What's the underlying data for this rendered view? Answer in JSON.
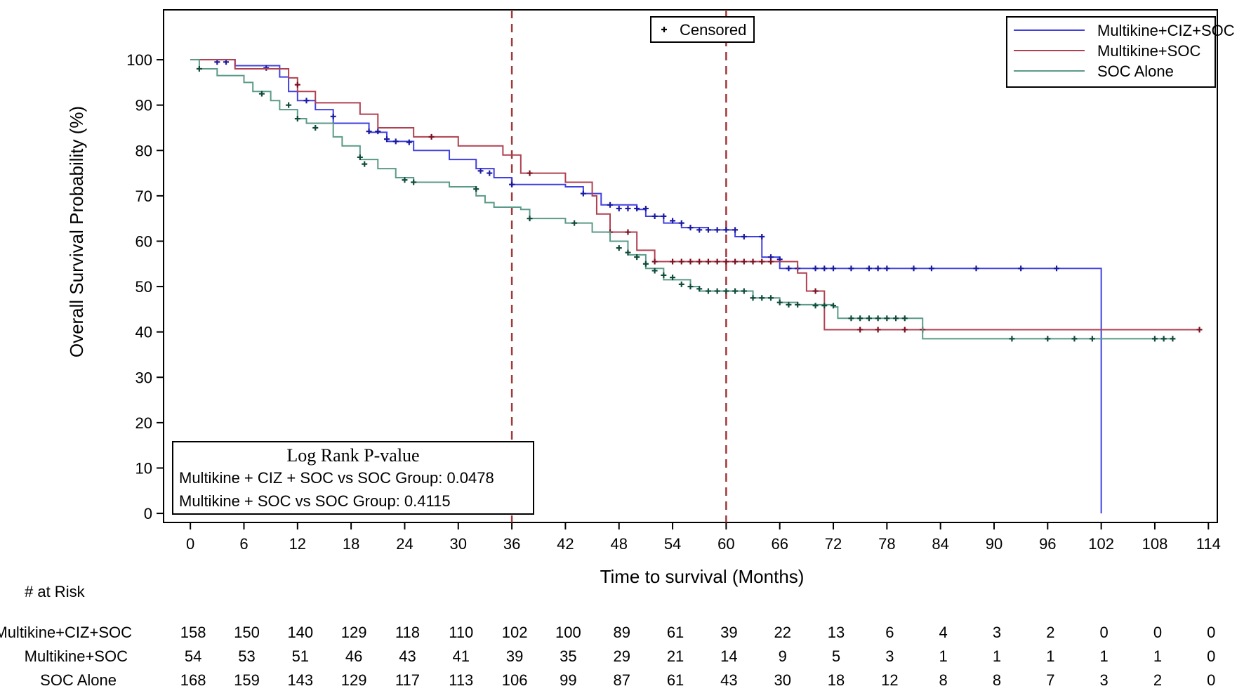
{
  "chart_data": {
    "type": "line",
    "subtype": "kaplan-meier",
    "title": "",
    "xlabel": "Time to survival (Months)",
    "ylabel": "Overall Survival Probability (%)",
    "xlim": [
      -3,
      115
    ],
    "ylim": [
      -2,
      111
    ],
    "x_ticks": [
      0,
      6,
      12,
      18,
      24,
      30,
      36,
      42,
      48,
      54,
      60,
      66,
      72,
      78,
      84,
      90,
      96,
      102,
      108,
      114
    ],
    "y_ticks": [
      0,
      10,
      20,
      30,
      40,
      50,
      60,
      70,
      80,
      90,
      100
    ],
    "reference_lines_x": [
      36,
      60
    ],
    "reference_line_color": "#9e3a3a",
    "censor_legend_label": "Censored",
    "censor_legend_position": "top-center",
    "legend_position": "top-right",
    "series": [
      {
        "name": "Multikine+CIZ+SOC",
        "color": "#4040e0",
        "marker_color": "#1a1aa0",
        "steps": [
          [
            0,
            100
          ],
          [
            5,
            98.7
          ],
          [
            10,
            96.2
          ],
          [
            11,
            93
          ],
          [
            12,
            91
          ],
          [
            14,
            89
          ],
          [
            16,
            86
          ],
          [
            20,
            84
          ],
          [
            22,
            82
          ],
          [
            25,
            80
          ],
          [
            29,
            78
          ],
          [
            32,
            76
          ],
          [
            34,
            74
          ],
          [
            36,
            72.5
          ],
          [
            42,
            72
          ],
          [
            44,
            70.5
          ],
          [
            46,
            68
          ],
          [
            50,
            67
          ],
          [
            51,
            65.5
          ],
          [
            53,
            64
          ],
          [
            55,
            63
          ],
          [
            58,
            62.5
          ],
          [
            61,
            61
          ],
          [
            64,
            56.5
          ],
          [
            66,
            54
          ],
          [
            102,
            54
          ],
          [
            102,
            0
          ]
        ],
        "censored": [
          [
            3,
            99.5
          ],
          [
            4,
            99.5
          ],
          [
            8.5,
            98.2
          ],
          [
            13,
            91
          ],
          [
            16,
            87.5
          ],
          [
            20,
            84.2
          ],
          [
            21,
            84.2
          ],
          [
            22,
            82.5
          ],
          [
            23,
            82
          ],
          [
            24.5,
            81.8
          ],
          [
            32.5,
            75.5
          ],
          [
            33.5,
            75
          ],
          [
            36,
            72.5
          ],
          [
            44,
            70.5
          ],
          [
            47,
            68
          ],
          [
            48,
            67.2
          ],
          [
            49,
            67.2
          ],
          [
            50,
            67.2
          ],
          [
            51,
            67.2
          ],
          [
            52,
            65.5
          ],
          [
            53,
            65.5
          ],
          [
            54,
            64.5
          ],
          [
            55,
            64
          ],
          [
            56,
            63
          ],
          [
            57,
            62.5
          ],
          [
            58,
            62.5
          ],
          [
            59,
            62.5
          ],
          [
            60,
            62.5
          ],
          [
            61,
            62.5
          ],
          [
            62,
            61
          ],
          [
            64,
            61
          ],
          [
            65,
            56.5
          ],
          [
            66,
            56
          ],
          [
            67,
            54
          ],
          [
            68,
            54
          ],
          [
            70,
            54
          ],
          [
            71,
            54
          ],
          [
            72,
            54
          ],
          [
            74,
            54
          ],
          [
            76,
            54
          ],
          [
            77,
            54
          ],
          [
            78,
            54
          ],
          [
            81,
            54
          ],
          [
            83,
            54
          ],
          [
            88,
            54
          ],
          [
            93,
            54
          ],
          [
            97,
            54
          ]
        ]
      },
      {
        "name": "Multikine+SOC",
        "color": "#b04050",
        "marker_color": "#7a1020",
        "steps": [
          [
            0,
            100
          ],
          [
            5,
            98
          ],
          [
            11,
            96
          ],
          [
            12,
            93
          ],
          [
            14,
            90.5
          ],
          [
            19,
            88
          ],
          [
            21,
            85
          ],
          [
            25,
            83
          ],
          [
            30,
            81
          ],
          [
            35,
            79
          ],
          [
            37,
            75
          ],
          [
            42,
            73
          ],
          [
            45,
            70
          ],
          [
            45.5,
            66
          ],
          [
            47,
            62
          ],
          [
            50,
            58
          ],
          [
            52,
            55.5
          ],
          [
            68,
            55
          ],
          [
            68,
            53
          ],
          [
            69,
            49
          ],
          [
            71,
            40.5
          ],
          [
            113,
            40.5
          ]
        ],
        "censored": [
          [
            12,
            94.5
          ],
          [
            27,
            83
          ],
          [
            38,
            75
          ],
          [
            47,
            62
          ],
          [
            49,
            62
          ],
          [
            52,
            55.5
          ],
          [
            54,
            55.5
          ],
          [
            55,
            55.5
          ],
          [
            56,
            55.5
          ],
          [
            57,
            55.5
          ],
          [
            58,
            55.5
          ],
          [
            59,
            55.5
          ],
          [
            60,
            55.5
          ],
          [
            61,
            55.5
          ],
          [
            62,
            55.5
          ],
          [
            63,
            55.5
          ],
          [
            64,
            55.5
          ],
          [
            65,
            55.5
          ],
          [
            70,
            49
          ],
          [
            75,
            40.5
          ],
          [
            77,
            40.5
          ],
          [
            80,
            40.5
          ],
          [
            82,
            40.5
          ],
          [
            113,
            40.5
          ]
        ]
      },
      {
        "name": "SOC Alone",
        "color": "#5a9a88",
        "marker_color": "#0f4a3a",
        "steps": [
          [
            0,
            100
          ],
          [
            1,
            98
          ],
          [
            3,
            96.5
          ],
          [
            6,
            95
          ],
          [
            7,
            93
          ],
          [
            9,
            91
          ],
          [
            10,
            89
          ],
          [
            12,
            87
          ],
          [
            13,
            86
          ],
          [
            16,
            83
          ],
          [
            17,
            81
          ],
          [
            19,
            78
          ],
          [
            21,
            76
          ],
          [
            23,
            74
          ],
          [
            25,
            73
          ],
          [
            29,
            72
          ],
          [
            32,
            70
          ],
          [
            33,
            68.5
          ],
          [
            34,
            67.5
          ],
          [
            37,
            67
          ],
          [
            38,
            65
          ],
          [
            42,
            64
          ],
          [
            45,
            62
          ],
          [
            47,
            60
          ],
          [
            49,
            57
          ],
          [
            51,
            54
          ],
          [
            53,
            51.5
          ],
          [
            56,
            50
          ],
          [
            57,
            49
          ],
          [
            63,
            47.5
          ],
          [
            66,
            46.5
          ],
          [
            68,
            46
          ],
          [
            72,
            45.5
          ],
          [
            72.5,
            43
          ],
          [
            82,
            38.5
          ],
          [
            110,
            38.5
          ]
        ],
        "censored": [
          [
            1,
            98
          ],
          [
            8,
            92.5
          ],
          [
            11,
            90
          ],
          [
            12,
            87
          ],
          [
            14,
            85
          ],
          [
            19,
            78.5
          ],
          [
            19.5,
            77
          ],
          [
            24,
            73.5
          ],
          [
            25,
            73
          ],
          [
            32,
            71.5
          ],
          [
            38,
            65
          ],
          [
            43,
            64
          ],
          [
            48,
            58.5
          ],
          [
            49,
            57.5
          ],
          [
            50,
            56.5
          ],
          [
            51,
            55
          ],
          [
            52,
            53.5
          ],
          [
            53,
            52.5
          ],
          [
            54,
            52
          ],
          [
            55,
            50.5
          ],
          [
            56,
            50
          ],
          [
            57,
            49.5
          ],
          [
            58,
            49
          ],
          [
            59,
            49
          ],
          [
            60,
            49
          ],
          [
            61,
            49
          ],
          [
            62,
            49
          ],
          [
            63,
            47.5
          ],
          [
            64,
            47.5
          ],
          [
            65,
            47.5
          ],
          [
            66,
            46.5
          ],
          [
            67,
            46
          ],
          [
            68,
            46
          ],
          [
            70,
            45.8
          ],
          [
            71,
            45.8
          ],
          [
            72,
            45.8
          ],
          [
            74,
            43
          ],
          [
            75,
            43
          ],
          [
            76,
            43
          ],
          [
            77,
            43
          ],
          [
            78,
            43
          ],
          [
            79,
            43
          ],
          [
            80,
            43
          ],
          [
            92,
            38.5
          ],
          [
            96,
            38.5
          ],
          [
            99,
            38.5
          ],
          [
            101,
            38.5
          ],
          [
            108,
            38.5
          ],
          [
            109,
            38.5
          ],
          [
            110,
            38.5
          ]
        ]
      }
    ],
    "pvalue_box": {
      "title": "Log Rank P-value",
      "lines": [
        "Multikine + CIZ + SOC vs SOC Group: 0.0478",
        "Multikine + SOC vs SOC Group: 0.4115"
      ],
      "position": "bottom-left"
    },
    "at_risk": {
      "title": "# at Risk",
      "times": [
        0,
        6,
        12,
        18,
        24,
        30,
        36,
        42,
        48,
        54,
        60,
        66,
        72,
        78,
        84,
        90,
        96,
        102,
        108,
        114
      ],
      "rows": [
        {
          "label": "Multikine+CIZ+SOC",
          "values": [
            "158",
            "150",
            "140",
            "129",
            "118",
            "110",
            "102",
            "100",
            "89",
            "61",
            "39",
            "22",
            "13",
            "6",
            "4",
            "3",
            "2",
            "0",
            "0",
            "0"
          ]
        },
        {
          "label": "Multikine+SOC",
          "values": [
            "54",
            "53",
            "51",
            "46",
            "43",
            "41",
            "39",
            "35",
            "29",
            "21",
            "14",
            "9",
            "5",
            "3",
            "1",
            "1",
            "1",
            "1",
            "1",
            "0"
          ]
        },
        {
          "label": "SOC Alone",
          "values": [
            "168",
            "159",
            "143",
            "129",
            "117",
            "113",
            "106",
            "99",
            "87",
            "61",
            "43",
            "30",
            "18",
            "12",
            "8",
            "8",
            "7",
            "3",
            "2",
            "0"
          ]
        }
      ]
    }
  }
}
